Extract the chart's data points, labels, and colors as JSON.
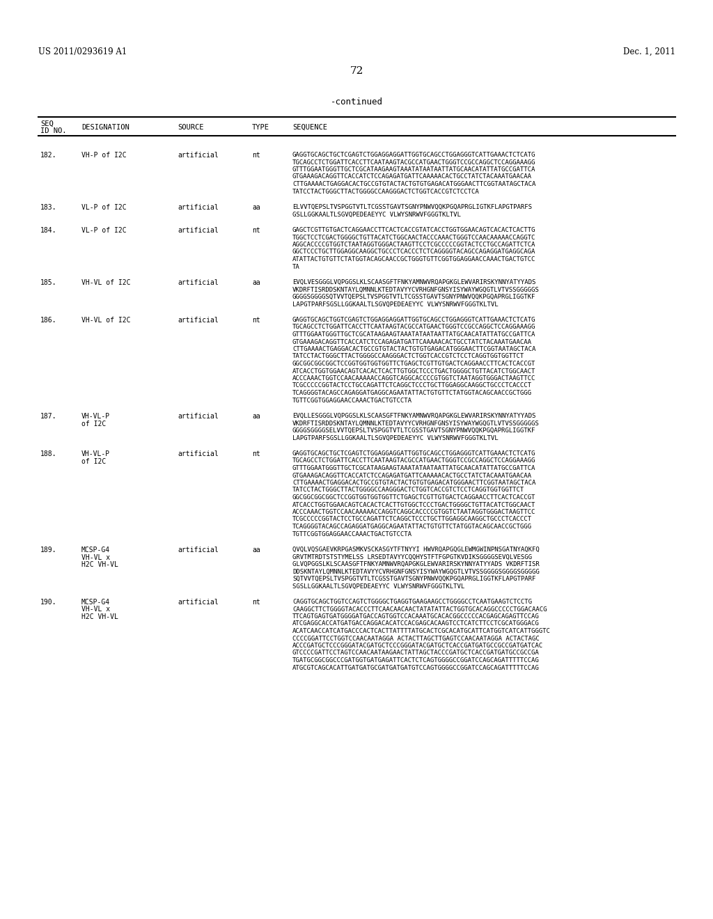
{
  "header_left": "US 2011/0293619 A1",
  "header_right": "Dec. 1, 2011",
  "page_number": "72",
  "continued_text": "-continued",
  "background_color": "#ffffff",
  "text_color": "#000000",
  "entries": [
    {
      "seq_id": "182.",
      "designation": "VH-P of I2C",
      "desig2": "",
      "source": "artificial",
      "type": "nt",
      "seq_lines": [
        "GAGGTGCAGCTGCTCGAGTCTGGAGGAGGATTGGTGCAGCCTGGAGGGTCATTGAAACTCTCATG",
        "TGCAGCCTCTGGATTCACCTTCAATAAGTACGCCATGAACTGGGTCCGCCAGGCTCCAGGAAAGG",
        "GTTTGGAATGGGTTGCTCGCATAAGAAGTAAATATAATAATTATGCAACATATTATGCCGATTCA",
        "GTGAAAGACAGGTTCACCATCTCCAGAGATGATTCAAAAACACTGCCTATCTACAAATGAACAA",
        "CTTGAAAACTGAGGACACTGCCGTGTACTACTGTGTGAGACATGGGAACTTCGGTAATAGCTACA",
        "TATCCTACTGGGCTTACTGGGGCCAAGGGACTCTGGTCACCGTCTCCTCA"
      ]
    },
    {
      "seq_id": "183.",
      "designation": "VL-P of I2C",
      "desig2": "",
      "source": "artificial",
      "type": "aa",
      "seq_lines": [
        "ELVVTQEPSLTVSPGGTVTLTCGSSTGAVTSGNYPNWVQQKPGQAPRGLIGTKFLAPGTPARFS",
        "GSLLGGKAALTLSGVQPEDEAEYYC VLWYSNRWVFGGGTKLTVL"
      ]
    },
    {
      "seq_id": "184.",
      "designation": "VL-P of I2C",
      "desig2": "",
      "source": "artificial",
      "type": "nt",
      "seq_lines": [
        "GAGCTCGTTGTGACTCAGGAACCTTCACTCACCGTATCACCTGGTGGAACAGTCACACTCACTTG",
        "TGGCTCCTCGACTGGGGCTGTTACATCTGGCAACTACCCAAACTGGGTCCAACAAAAACCAGGTC",
        "AGGCACCCCGTGGTCTAATAGGTGGGACTAAGTTCCTCGCCCCCGGTACTCCTGCCAGATTCTCA",
        "GGCTCCCTGCTTGGAGGCAAGGCTGCCCTCACCCTCTCAGGGGTACAGCCAGAGGATGAGGCAGA",
        "ATATTACTGTGTTCTATGGTACAGCAACCGCTGGGTGTTCGGTGGAGGAACCAAACTGACTGTCC",
        "TA"
      ]
    },
    {
      "seq_id": "185.",
      "designation": "VH-VL of I2C",
      "desig2": "",
      "source": "artificial",
      "type": "aa",
      "seq_lines": [
        "EVQLVESGGGLVQPGGSLKLSCAASGFTFNKYAMNWVRQAPGKGLEWVARIRSKYNNYATYYADS",
        "VKDRFTISRDDSKNTAYLQMNNLKTEDTAVYYCVRHGNFGNSYISYWAYWGQGTLVTVSSGGGGGS",
        "GGGGSGGGGSQTVVTQEPSLTVSPGGTVTLTCGSSTGAVTSGNYPNWVQQKPGQAPRGLIGGTKF",
        "LAPGTPARFSGSLLGGKAALTLSGVQPEDEAEYYC VLWYSNRWVFGGGTKLTVL"
      ]
    },
    {
      "seq_id": "186.",
      "designation": "VH-VL of I2C",
      "desig2": "",
      "source": "artificial",
      "type": "nt",
      "seq_lines": [
        "GAGGTGCAGCTGGTCGAGTCTGGAGGAGGATTGGTGCAGCCTGGAGGGTCATTGAAACTCTCATG",
        "TGCAGCCTCTGGATTCACCTTCAATAAGTACGCCATGAACTGGGTCCGCCAGGCTCCAGGAAAGG",
        "GTTTGGAATGGGTTGCTCGCATAAGAAGTAAATATAATAATTATGCAACATATTATGCCGATTCA",
        "GTGAAAGACAGGTTCACCATCTCCAGAGATGATTCAAAAACACTGCCTATCTACAAATGAACAA",
        "CTTGAAAACTGAGGACACTGCCGTGTACTACTGTGTGAGACATGGGAACTTCGGTAATAGCTACA",
        "TATCCTACTGGGCTTACTGGGGCCAAGGGACTCTGGTCACCGTCTCCTCAGGTGGTGGTTCT",
        "GGCGGCGGCGGCTCCGGTGGTGGTGGTTCTGAGCTCGTTGTGACTCAGGAACCTTCACTCACCGT",
        "ATCACCTGGTGGAACAGTCACACTCACTTGTGGCTCCCTGACTGGGGCTGTTACATCTGGCAACT",
        "ACCCAAACTGGTCCAACAAAAACCAGGTCAGGCACCCCGTGGTCTAATAGGTGGGACTAAGTTCC",
        "TCGCCCCCGGTACTCCTGCCAGATTCTCAGGCTCCCTGCTTGGAGGCAAGGCTGCCCTCACCCT",
        "TCAGGGGTACAGCCAGAGGATGAGGCAGAATATTACTGTGTTCTATGGTACAGCAACCGCTGGG",
        "TGTTCGGTGGAGGAACCAAACTGACTGTCCTA"
      ]
    },
    {
      "seq_id": "187.",
      "designation": "VH-VL-P",
      "desig2": "of I2C",
      "source": "artificial",
      "type": "aa",
      "seq_lines": [
        "EVQLLESGGGLVQPGGSLKLSCAASGFTFNKYAMNWVRQAPGKGLEWVARIRSKYNNYATYYADS",
        "VKDRFTISRDDSKNTAYLQMNNLKTEDTAVYYCVRHGNFGNSYISYWAYWGQGTLVTVSSGGGGGS",
        "GGGGSGGGGSELVVTQEPSLTVSPGGTVTLTCGSSTGAVTSGNYPNWVQQKPGQAPRGLIGGTKF",
        "LAPGTPARFSGSLLGGKAALTLSGVQPEDEAEYYC VLWYSNRWVFGGGTKLTVL"
      ]
    },
    {
      "seq_id": "188.",
      "designation": "VH-VL-P",
      "desig2": "of I2C",
      "source": "artificial",
      "type": "nt",
      "seq_lines": [
        "GAGGTGCAGCTGCTCGAGTCTGGAGGAGGATTGGTGCAGCCTGGAGGGTCATTGAAACTCTCATG",
        "TGCAGCCTCTGGATTCACCTTCAATAAGTACGCCATGAACTGGGTCCGCCAGGCTCCAGGAAAGG",
        "GTTTGGAATGGGTTGCTCGCATAAGAAGTAAATATAATAATTATGCAACATATTATGCCGATTCA",
        "GTGAAAGACAGGTTCACCATCTCCAGAGATGATTCAAAAACACTGCCTATCTACAAATGAACAA",
        "CTTGAAAACTGAGGACACTGCCGTGTACTACTGTGTGAGACATGGGAACTTCGGTAATAGCTACA",
        "TATCCTACTGGGCTTACTGGGGCCAAGGGACTCTGGTCACCGTCTCCTCAGGTGGTGGTTCT",
        "GGCGGCGGCGGCTCCGGTGGTGGTGGTTCTGAGCTCGTTGTGACTCAGGAACCTTCACTCACCGT",
        "ATCACCTGGTGGAACAGTCACACTCACTTGTGGCTCCCTGACTGGGGCTGTTACATCTGGCAACT",
        "ACCCAAACTGGTCCAACAAAAACCAGGTCAGGCACCCCGTGGTCTAATAGGTGGGACTAAGTTCC",
        "TCGCCCCCGGTACTCCTGCCAGATTCTCAGGCTCCCTGCTTGGAGGCAAGGCTGCCCTCACCCT",
        "TCAGGGGTACAGCCAGAGGATGAGGCAGAATATTACTGTGTTCTATGGTACAGCAACCGCTGGG",
        "TGTTCGGTGGAGGAACCAAACTGACTGTCCTA"
      ]
    },
    {
      "seq_id": "189.",
      "designation": "MCSP-G4",
      "desig2": "VH-VL x",
      "desig3": "H2C VH-VL",
      "source": "artificial",
      "type": "aa",
      "seq_lines": [
        "QVQLVQSGAEVKRPGASMKVSCKASGYTFTNYYI HWVRQAPGQGLEWMGWINPNSGATNYAQKFQ",
        "GRVTMTRDTSTSTYMELSS LRSEDTAVYYCQQHYSTFTFGPGTKVDIKSGGGGSEVQLVESGG",
        "GLVQPGGSLKLSCAASGFTFNKYAMNWVRQAPGKGLEWVARIRSKYNNYATYYADS VKDRFTISR",
        "DDSKNTAYLQMNNLKTEDTAVYYCVRHGNFGNSYISYWAYWGQGTLVTVSSGGGGSGGGGSGGGGG",
        "SQTVVTQEPSLTVSPGGTVTLTCGSSTGAVTSGNYPNWVQQKPGQAPRGLIGGTKFLAPGTPARF",
        "SGSLLGGKAALTLSGVQPEDEAEYYC VLWYSNRWVFGGGTKLTVL"
      ]
    },
    {
      "seq_id": "190.",
      "designation": "MCSP-G4",
      "desig2": "VH-VL x",
      "desig3": "H2C VH-VL",
      "source": "artificial",
      "type": "nt",
      "seq_lines": [
        "CAGGTGCAGCTGGTCCAGTCTGGGGCTGAGGTGAAGAAGCCTGGGGCCTCAATGAAGTCTCCTG",
        "CAAGGCTTCTGGGGTACACCCTTCAACAACAACTATATATTACTGGTGCACAGGCCCCCTGGACAACG",
        "TTCAGTGAGTGATGGGGATGACCAGTGGTCCACAAATGCACACGGCCCCCACGAGCAGAGTTCCAG",
        "ATCGAGGCACCATGATGACCAGGACACATCCACGAGCACAAGTCCTCATCTTCCTCGCATGGGACG",
        "ACATCAACCATCATGACCCACTCACTTATTTTATGCACTCGCACATGCATTCATGGTCATCATTGGGTC",
        "CCCCGGATTCCTGGTCCAACAATAGGA ACTACTTAGCTTGAGTCCAACAATAGGA ACTACTAGC",
        "ACCCGATGCTCCCGGGATACGATGCTCCCGGGATACGATGCTCACCGATGATGCCGCCGATGATCAC",
        "GTCCCCGATTCCTAGTCCAACAATAAGAACTATTAGCTACCCGATGCTCACCGATGATGCCGCCGA",
        "TGATGCGGCGGCCCGATGGTGATGAGATTCACTCTCAGTGGGGCCGGATCCAGCAGATTTTTCCAG",
        "ATGCGTCAGCACATTGATGATGCGATGATGATGTCCAGTGGGGCCGGATCCAGCAGATTTTTCCAG"
      ]
    }
  ]
}
